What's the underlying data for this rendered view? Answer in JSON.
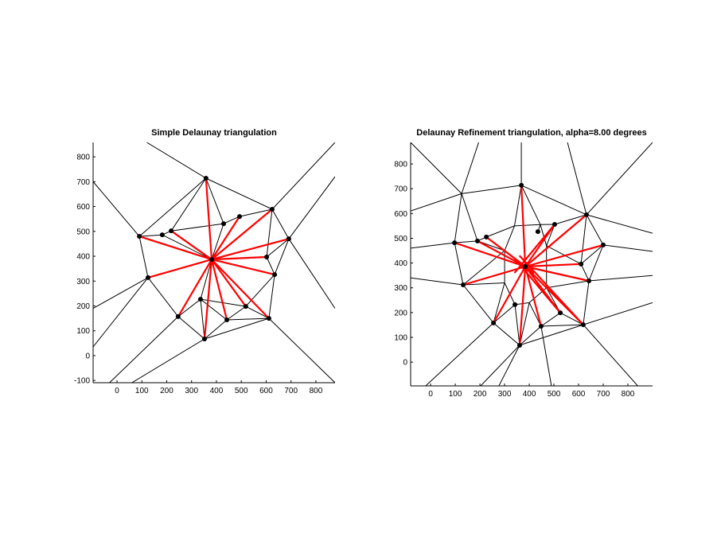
{
  "chart_data": [
    {
      "type": "triangulation",
      "title": "Simple Delaunay triangulation",
      "xlim": [
        -96,
        877
      ],
      "ylim": [
        -109,
        858
      ],
      "xticks": [
        0,
        100,
        200,
        300,
        400,
        500,
        600,
        700,
        800
      ],
      "yticks": [
        -100,
        0,
        100,
        200,
        300,
        400,
        500,
        600,
        700,
        800
      ],
      "points": {
        "color": "#000000",
        "x": [
          358,
          624,
          493,
          429,
          218,
          182,
          90,
          691,
          381,
          602,
          634,
          125,
          336,
          518,
          246,
          611,
          442,
          352
        ],
        "y": [
          714,
          589,
          560,
          531,
          502,
          486,
          480,
          470,
          387,
          397,
          326,
          314,
          227,
          198,
          157,
          150,
          144,
          67
        ]
      },
      "series": [
        {
          "color": "#000000",
          "width": 1,
          "x": [
            90,
            358,
            null,
            358,
            624,
            null,
            624,
            691,
            null,
            691,
            634,
            null,
            634,
            611,
            null,
            611,
            352,
            null,
            352,
            246,
            null,
            246,
            125,
            null,
            125,
            90,
            null,
            90,
            182,
            null,
            182,
            218,
            null,
            218,
            429,
            null,
            429,
            493,
            null,
            493,
            624,
            null,
            358,
            429,
            null,
            358,
            218,
            null,
            624,
            602,
            null,
            602,
            691,
            null,
            602,
            634,
            null,
            634,
            518,
            null,
            518,
            611,
            null,
            518,
            442,
            null,
            442,
            611,
            null,
            442,
            336,
            null,
            336,
            246,
            null,
            336,
            352,
            null,
            352,
            442,
            null,
            336,
            381,
            null,
            429,
            381,
            null,
            182,
            381,
            null,
            336,
            518,
            null,
            90,
            -96,
            null,
            358,
            120,
            null,
            624,
            877,
            null,
            691,
            877,
            null,
            691,
            877,
            null,
            125,
            -96,
            null,
            125,
            -96,
            null,
            246,
            -30,
            null,
            352,
            60,
            null,
            611,
            877
          ],
          "y": [
            480,
            714,
            null,
            714,
            589,
            null,
            589,
            470,
            null,
            470,
            326,
            null,
            326,
            150,
            null,
            150,
            67,
            null,
            67,
            157,
            null,
            157,
            314,
            null,
            314,
            480,
            null,
            480,
            486,
            null,
            486,
            502,
            null,
            502,
            531,
            null,
            531,
            560,
            null,
            560,
            589,
            null,
            714,
            531,
            null,
            714,
            502,
            null,
            589,
            397,
            null,
            397,
            470,
            null,
            397,
            326,
            null,
            326,
            198,
            null,
            198,
            150,
            null,
            198,
            144,
            null,
            144,
            150,
            null,
            144,
            227,
            null,
            227,
            157,
            null,
            227,
            67,
            null,
            67,
            144,
            null,
            227,
            387,
            null,
            531,
            387,
            null,
            486,
            387,
            null,
            227,
            198,
            null,
            480,
            700,
            null,
            714,
            858,
            null,
            589,
            858,
            null,
            470,
            720,
            null,
            470,
            190,
            null,
            314,
            190,
            null,
            314,
            35,
            null,
            157,
            -109,
            null,
            67,
            -109,
            null,
            150,
            -109
          ]
        },
        {
          "color": "#ff0000",
          "width": 2.2,
          "x": [
            381,
            358,
            null,
            381,
            624,
            null,
            381,
            493,
            null,
            381,
            218,
            null,
            381,
            90,
            null,
            381,
            691,
            null,
            381,
            602,
            null,
            381,
            634,
            null,
            381,
            125,
            null,
            381,
            246,
            null,
            381,
            611,
            null,
            381,
            442,
            null,
            381,
            352,
            null,
            381,
            518
          ],
          "y": [
            387,
            714,
            null,
            387,
            589,
            null,
            387,
            560,
            null,
            387,
            502,
            null,
            387,
            480,
            null,
            387,
            470,
            null,
            387,
            397,
            null,
            387,
            326,
            null,
            387,
            314,
            null,
            387,
            157,
            null,
            387,
            150,
            null,
            387,
            144,
            null,
            387,
            67,
            null,
            387,
            198
          ]
        }
      ]
    },
    {
      "type": "triangulation",
      "title": "Delaunay Refinement triangulation, alpha=8.00 degrees",
      "xlim": [
        -81,
        900
      ],
      "ylim": [
        -96,
        887
      ],
      "xticks": [
        0,
        100,
        200,
        300,
        400,
        500,
        600,
        700,
        800
      ],
      "yticks": [
        0,
        100,
        200,
        300,
        400,
        500,
        600,
        700,
        800
      ],
      "points": {
        "color": "#000000",
        "x": [
          368,
          632,
          503,
          435,
          226,
          190,
          97,
          700,
          384,
          610,
          642,
          132,
          342,
          526,
          255,
          448,
          619,
          361
        ],
        "y": [
          714,
          595,
          556,
          527,
          505,
          489,
          482,
          473,
          386,
          396,
          328,
          312,
          232,
          199,
          158,
          145,
          151,
          68
        ]
      },
      "series": [
        {
          "color": "#000000",
          "width": 1,
          "x": [
            368,
            632,
            null,
            632,
            700,
            null,
            700,
            642,
            null,
            642,
            619,
            null,
            619,
            361,
            null,
            361,
            255,
            null,
            255,
            132,
            null,
            132,
            97,
            null,
            97,
            190,
            null,
            190,
            226,
            null,
            226,
            340,
            null,
            340,
            368,
            null,
            340,
            445,
            null,
            445,
            503,
            null,
            503,
            632,
            null,
            368,
            445,
            null,
            445,
            435,
            null,
            632,
            610,
            null,
            610,
            700,
            null,
            610,
            642,
            null,
            470,
            610,
            null,
            470,
            503,
            null,
            300,
            226,
            null,
            300,
            190,
            null,
            300,
            132,
            null,
            300,
            300,
            null,
            300,
            132,
            null,
            300,
            255,
            null,
            300,
            342,
            null,
            342,
            255,
            null,
            342,
            361,
            null,
            342,
            400,
            null,
            400,
            448,
            null,
            400,
            361,
            null,
            448,
            526,
            null,
            526,
            619,
            null,
            526,
            470,
            null,
            470,
            642,
            null,
            470,
            400,
            null,
            470,
            470,
            null,
            340,
            300,
            null,
            445,
            470,
            null,
            448,
            361,
            null,
            448,
            619,
            null,
            126,
            368,
            null,
            126,
            97,
            null,
            126,
            190,
            null,
            126,
            -81,
            null,
            126,
            -81,
            null,
            126,
            195,
            null,
            632,
            555,
            null,
            368,
            368,
            null,
            632,
            900,
            null,
            632,
            900,
            null,
            700,
            900,
            null,
            642,
            900,
            null,
            619,
            900,
            null,
            619,
            840,
            null,
            448,
            490,
            null,
            361,
            277,
            null,
            361,
            203,
            null,
            255,
            -20,
            null,
            132,
            -81,
            null,
            97,
            -81
          ],
          "y": [
            714,
            595,
            null,
            595,
            473,
            null,
            473,
            328,
            null,
            328,
            151,
            null,
            151,
            68,
            null,
            68,
            158,
            null,
            158,
            312,
            null,
            312,
            482,
            null,
            482,
            489,
            null,
            489,
            505,
            null,
            505,
            550,
            null,
            550,
            714,
            null,
            550,
            555,
            null,
            555,
            556,
            null,
            556,
            595,
            null,
            714,
            555,
            null,
            555,
            527,
            null,
            595,
            396,
            null,
            396,
            473,
            null,
            396,
            328,
            null,
            470,
            396,
            null,
            470,
            556,
            null,
            450,
            505,
            null,
            450,
            489,
            null,
            450,
            312,
            null,
            450,
            320,
            null,
            320,
            312,
            null,
            320,
            158,
            null,
            320,
            232,
            null,
            232,
            158,
            null,
            232,
            68,
            null,
            232,
            240,
            null,
            240,
            145,
            null,
            240,
            68,
            null,
            145,
            199,
            null,
            199,
            151,
            null,
            199,
            300,
            null,
            300,
            328,
            null,
            300,
            240,
            null,
            300,
            470,
            null,
            550,
            450,
            null,
            555,
            470,
            null,
            145,
            68,
            null,
            145,
            151,
            null,
            680,
            714,
            null,
            680,
            482,
            null,
            680,
            489,
            null,
            680,
            887,
            null,
            680,
            610,
            null,
            680,
            887,
            null,
            595,
            887,
            null,
            714,
            887,
            null,
            595,
            887,
            null,
            595,
            520,
            null,
            473,
            447,
            null,
            328,
            350,
            null,
            151,
            240,
            null,
            151,
            -96,
            null,
            145,
            -96,
            null,
            68,
            -96,
            null,
            68,
            -96,
            null,
            158,
            -96,
            null,
            312,
            340,
            null,
            482,
            460
          ]
        },
        {
          "color": "#ff0000",
          "width": 2.2,
          "x": [
            384,
            368,
            null,
            384,
            632,
            null,
            384,
            503,
            null,
            384,
            226,
            null,
            384,
            190,
            null,
            384,
            97,
            null,
            384,
            700,
            null,
            384,
            610,
            null,
            384,
            642,
            null,
            384,
            132,
            null,
            384,
            255,
            null,
            384,
            448,
            null,
            384,
            619,
            null,
            384,
            361,
            null,
            384,
            526,
            null,
            226,
            420,
            null,
            503,
            340,
            null,
            619,
            360,
            null,
            526,
            340
          ],
          "y": [
            386,
            714,
            null,
            386,
            595,
            null,
            386,
            556,
            null,
            386,
            505,
            null,
            386,
            489,
            null,
            386,
            482,
            null,
            386,
            473,
            null,
            386,
            396,
            null,
            386,
            328,
            null,
            386,
            312,
            null,
            386,
            158,
            null,
            386,
            145,
            null,
            386,
            151,
            null,
            386,
            68,
            null,
            386,
            199,
            null,
            505,
            360,
            null,
            556,
            360,
            null,
            151,
            430,
            null,
            199,
            420
          ]
        }
      ]
    }
  ]
}
